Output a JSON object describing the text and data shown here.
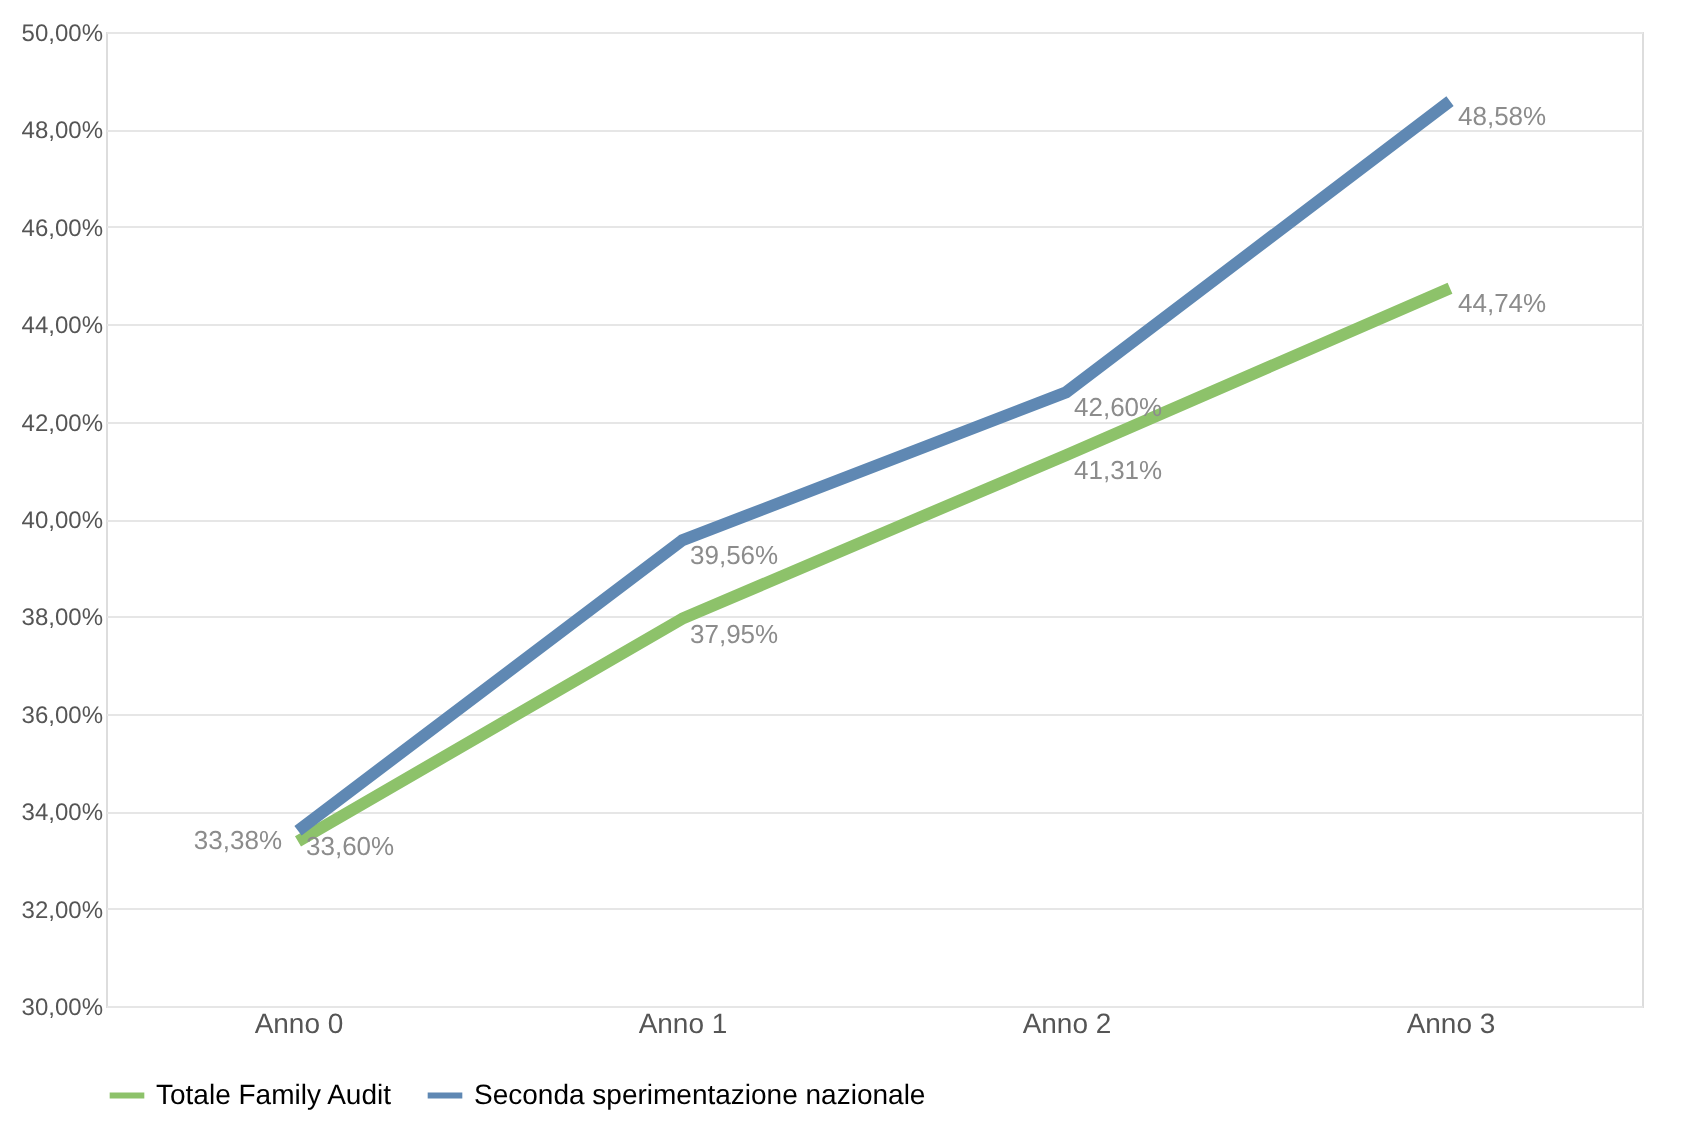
{
  "chart_data": {
    "type": "line",
    "categories": [
      "Anno 0",
      "Anno 1",
      "Anno 2",
      "Anno 3"
    ],
    "series": [
      {
        "name": "Totale Family Audit",
        "color": "#8dc26a",
        "values": [
          33.38,
          37.95,
          41.31,
          44.74
        ],
        "value_labels": [
          "33,38%",
          "37,95%",
          "41,31%",
          "44,74%"
        ]
      },
      {
        "name": "Seconda sperimentazione nazionale",
        "color": "#5f88b3",
        "values": [
          33.6,
          39.56,
          42.6,
          48.58
        ],
        "value_labels": [
          "33,60%",
          "39,56%",
          "42,60%",
          "48,58%"
        ]
      }
    ],
    "ylim": [
      30,
      50
    ],
    "yticks": [
      {
        "value": 30,
        "label": "30,00%"
      },
      {
        "value": 32,
        "label": "32,00%"
      },
      {
        "value": 34,
        "label": "34,00%"
      },
      {
        "value": 36,
        "label": "36,00%"
      },
      {
        "value": 38,
        "label": "38,00%"
      },
      {
        "value": 40,
        "label": "40,00%"
      },
      {
        "value": 42,
        "label": "42,00%"
      },
      {
        "value": 44,
        "label": "44,00%"
      },
      {
        "value": 46,
        "label": "46,00%"
      },
      {
        "value": 48,
        "label": "48,00%"
      },
      {
        "value": 50,
        "label": "50,00%"
      }
    ],
    "grid": "y",
    "legend": "bottom",
    "marker": "none",
    "line_style": "solid"
  }
}
